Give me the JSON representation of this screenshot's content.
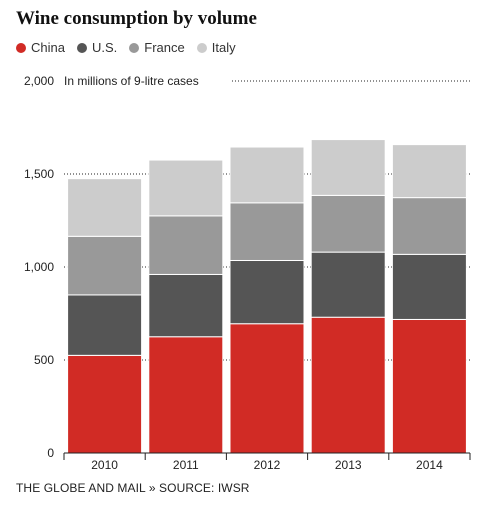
{
  "chart_data": {
    "type": "bar",
    "stacked": true,
    "title": "Wine consumption by volume",
    "ylabel": "In millions of 9-litre cases",
    "categories": [
      "2010",
      "2011",
      "2012",
      "2013",
      "2014"
    ],
    "series": [
      {
        "name": "China",
        "color": "#d12b25",
        "values": [
          525,
          625,
          695,
          730,
          718
        ]
      },
      {
        "name": "U.S.",
        "color": "#555555",
        "values": [
          325,
          335,
          340,
          350,
          350
        ]
      },
      {
        "name": "France",
        "color": "#999999",
        "values": [
          315,
          315,
          310,
          305,
          305
        ]
      },
      {
        "name": "Italy",
        "color": "#cccccc",
        "values": [
          310,
          300,
          300,
          300,
          285
        ]
      }
    ],
    "ylim": [
      0,
      2000
    ],
    "yticks": [
      0,
      500,
      1000,
      1500,
      2000
    ],
    "ytick_labels": [
      "0",
      "500",
      "1,000",
      "1,500",
      "2,000"
    ],
    "grid": "dotted",
    "legend": "top-left"
  },
  "footer": "THE GLOBE AND MAIL » SOURCE: IWSR"
}
